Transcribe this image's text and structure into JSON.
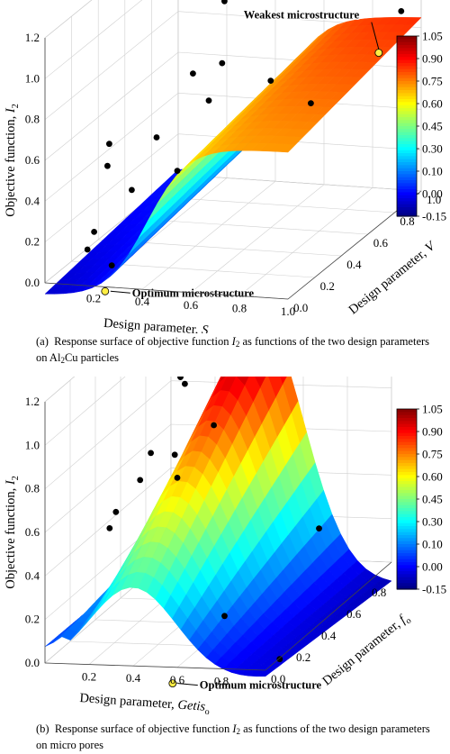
{
  "chart_data": [
    {
      "type": "surface",
      "panel_label": "(a)",
      "caption_pre": "Response surface of objective function ",
      "caption_var": "I",
      "caption_var_sub": "2",
      "caption_mid": " as functions of the two design parameters on Al",
      "caption_sub": "2",
      "caption_post": "Cu particles",
      "zlabel": "Objective function, I2",
      "zlabel_main": "Objective function, ",
      "zlabel_var": "I",
      "zlabel_var_sub": "2",
      "xlabel": "Design parameter, S",
      "xlabel_main": "Design parameter, ",
      "xlabel_var": "S",
      "ylabel": "Design parameter, V",
      "ylabel_main": "Design parameter, ",
      "ylabel_var": "V",
      "xticks": [
        "0.2",
        "0.4",
        "0.6",
        "0.8",
        "1.0"
      ],
      "yticks": [
        "0.0",
        "0.2",
        "0.4",
        "0.6",
        "0.8",
        "1.0"
      ],
      "zticks": [
        "0.0",
        "0.2",
        "0.4",
        "0.6",
        "0.8",
        "1.0",
        "1.2"
      ],
      "xlim": [
        0.0,
        1.0
      ],
      "ylim": [
        0.0,
        1.0
      ],
      "zlim": [
        0.0,
        1.2
      ],
      "colorbar_ticks": [
        "-0.15",
        "0.00",
        "0.10",
        "0.30",
        "0.45",
        "0.60",
        "0.75",
        "0.90",
        "1.05"
      ],
      "colorbar_range": [
        -0.15,
        1.05
      ],
      "grid": true,
      "colormap": "jet",
      "points": [
        {
          "x": 0.1,
          "y": 0.3,
          "z": 0.53
        },
        {
          "x": 0.12,
          "y": 0.25,
          "z": 0.45
        },
        {
          "x": 0.12,
          "y": 0.15,
          "z": 0.18
        },
        {
          "x": 0.12,
          "y": 0.1,
          "z": 0.12
        },
        {
          "x": 0.24,
          "y": 0.4,
          "z": 0.52
        },
        {
          "x": 0.22,
          "y": 0.25,
          "z": 0.34
        },
        {
          "x": 0.22,
          "y": 0.1,
          "z": 0.05
        },
        {
          "x": 0.28,
          "y": 0.6,
          "z": 0.73
        },
        {
          "x": 0.3,
          "y": 0.8,
          "z": 0.98
        },
        {
          "x": 0.4,
          "y": 0.5,
          "z": 0.66
        },
        {
          "x": 0.4,
          "y": 0.6,
          "z": 0.79
        },
        {
          "x": 0.38,
          "y": 0.3,
          "z": 0.42
        },
        {
          "x": 0.6,
          "y": 0.6,
          "z": 0.72
        },
        {
          "x": 0.82,
          "y": 0.5,
          "z": 0.68
        },
        {
          "x": 1.0,
          "y": 0.85,
          "z": 0.96
        }
      ],
      "highlights": [
        {
          "label": "Optimum microstructure",
          "x": 0.22,
          "y": 0.05,
          "z": -0.05
        },
        {
          "label": "Weakest microstructure",
          "x": 0.88,
          "y": 0.9,
          "z": 0.72
        }
      ]
    },
    {
      "type": "surface",
      "panel_label": "(b)",
      "caption_pre": "Response surface of objective function ",
      "caption_var": "I",
      "caption_var_sub": "2",
      "caption_mid": " as functions of the two design parameters on micro pores",
      "caption_sub": "",
      "caption_post": "",
      "zlabel": "Objective function, I2",
      "zlabel_main": "Objective function, ",
      "zlabel_var": "I",
      "zlabel_var_sub": "2",
      "xlabel": "Design parameter, Getiso",
      "xlabel_main": "Design parameter, ",
      "xlabel_var": "Getis",
      "xlabel_var_sub": "o",
      "ylabel": "Design parameter, fo",
      "ylabel_main": "Design parameter, ",
      "ylabel_var": "f",
      "ylabel_var_sub": "o",
      "xticks": [
        "0.2",
        "0.4",
        "0.6",
        "0.8"
      ],
      "yticks": [
        "0.0",
        "0.2",
        "0.4",
        "0.6",
        "0.8",
        "1.0"
      ],
      "zticks": [
        "0.0",
        "0.2",
        "0.4",
        "0.6",
        "0.8",
        "1.0",
        "1.2"
      ],
      "xlim": [
        0.0,
        1.0
      ],
      "ylim": [
        0.0,
        1.0
      ],
      "zlim": [
        0.0,
        1.2
      ],
      "colorbar_ticks": [
        "-0.15",
        "0.00",
        "0.10",
        "0.30",
        "0.45",
        "0.60",
        "0.75",
        "0.90",
        "1.05"
      ],
      "colorbar_range": [
        -0.15,
        1.05
      ],
      "grid": true,
      "colormap": "jet",
      "points": [
        {
          "x": 0.15,
          "y": 0.3,
          "z": 0.55
        },
        {
          "x": 0.15,
          "y": 0.25,
          "z": 0.5
        },
        {
          "x": 0.3,
          "y": 0.55,
          "z": 1.05
        },
        {
          "x": 0.32,
          "y": 0.55,
          "z": 1.02
        },
        {
          "x": 0.28,
          "y": 0.35,
          "z": 0.8
        },
        {
          "x": 0.26,
          "y": 0.3,
          "z": 0.7
        },
        {
          "x": 0.36,
          "y": 0.4,
          "z": 0.77
        },
        {
          "x": 0.4,
          "y": 0.35,
          "z": 0.69
        },
        {
          "x": 0.48,
          "y": 0.5,
          "z": 0.86
        },
        {
          "x": 0.7,
          "y": 0.2,
          "z": 0.14
        },
        {
          "x": 0.9,
          "y": 0.6,
          "z": 0.35
        },
        {
          "x": 0.95,
          "y": 0.2,
          "z": -0.05
        }
      ],
      "highlights": [
        {
          "label": "Weakest microstructure",
          "x": 0.45,
          "y": 0.6,
          "z": 1.25
        },
        {
          "label": "Optimum microstructure",
          "x": 0.55,
          "y": 0.05,
          "z": -0.1
        }
      ]
    }
  ]
}
